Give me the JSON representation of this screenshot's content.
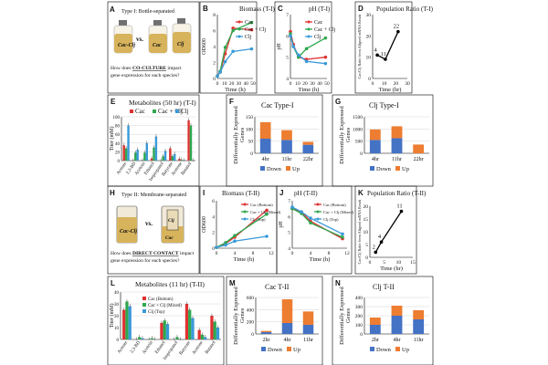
{
  "colors": {
    "cac": "#e03131",
    "mix": "#2fa84f",
    "clj": "#3a9ad9",
    "down": "#4472c4",
    "up": "#ed7d31",
    "black": "#000000"
  },
  "panelA": {
    "letter": "A",
    "title": "Type I: Bottle-separated",
    "bottle1": "Cac-Clj",
    "vs": "vs.",
    "bottle2": "Cac",
    "bottle3": "Clj",
    "q1": "How does ",
    "q_emph": "CO-CULTURE",
    "q2": " impact",
    "q3": "gene expression for each species?"
  },
  "panelH": {
    "letter": "H",
    "title": "Type II: Membrane-separated",
    "tube1": "Cac-Clj",
    "vs": "vs.",
    "tube2": "Cac",
    "tube3": "Clj",
    "q1": "How does ",
    "q_emph": "DIRECT CONTACT",
    "q2": " impact",
    "q3": "gene expression for each species?"
  },
  "chart_data": [
    {
      "id": "B",
      "type": "line",
      "title": "Biomass (T-I)",
      "xlabel": "Time (h)",
      "ylabel": "OD600",
      "xlim": [
        0,
        50
      ],
      "ylim": [
        0,
        8
      ],
      "xticks": [
        0,
        10,
        20,
        30,
        40,
        50
      ],
      "yticks": [
        0,
        2,
        4,
        6,
        8
      ],
      "series": [
        {
          "name": "Cac",
          "x": [
            0,
            4,
            11,
            22,
            48
          ],
          "y": [
            0.3,
            0.8,
            3.1,
            6.3,
            6.1
          ]
        },
        {
          "name": "Cac + Clj",
          "x": [
            0,
            4,
            11,
            22,
            48
          ],
          "y": [
            0.3,
            0.9,
            3.9,
            6.0,
            7.0
          ]
        },
        {
          "name": "Clj",
          "x": [
            0,
            4,
            11,
            22,
            48
          ],
          "y": [
            0.3,
            0.8,
            2.1,
            3.4,
            3.7
          ]
        }
      ]
    },
    {
      "id": "C",
      "type": "line",
      "title": "pH (T-I)",
      "xlabel": "Time (h)",
      "ylabel": "pH",
      "xlim": [
        0,
        50
      ],
      "ylim": [
        4,
        7
      ],
      "xticks": [
        0,
        10,
        20,
        30,
        40,
        50
      ],
      "yticks": [
        4,
        5,
        6,
        7
      ],
      "series": [
        {
          "name": "Cac",
          "x": [
            0,
            4,
            11,
            22,
            48
          ],
          "y": [
            6.2,
            5.6,
            5.0,
            4.9,
            5.0
          ]
        },
        {
          "name": "Cac + Clj",
          "x": [
            0,
            4,
            11,
            22,
            48
          ],
          "y": [
            6.1,
            5.5,
            5.0,
            5.4,
            5.9
          ]
        },
        {
          "name": "Clj",
          "x": [
            0,
            4,
            11,
            22,
            48
          ],
          "y": [
            6.0,
            5.5,
            5.1,
            4.8,
            4.7
          ]
        }
      ]
    },
    {
      "id": "D",
      "type": "line",
      "title": "Population Ratio (T-I)",
      "xlabel": "Time (hr)",
      "ylabel": "Cac/Clj Ratio from Aligned mRNA Reads",
      "xlim": [
        0,
        30
      ],
      "ylim": [
        0,
        30
      ],
      "xticks": [
        0,
        10,
        20,
        30
      ],
      "yticks": [
        0,
        10,
        20,
        30
      ],
      "series": [
        {
          "name": "Ratio",
          "x": [
            4,
            11,
            22
          ],
          "y": [
            11,
            9,
            22
          ],
          "labels": [
            "4",
            "11",
            "22"
          ]
        }
      ]
    },
    {
      "id": "E",
      "type": "bar",
      "title": "Metabolites (50 hr) (T-I)",
      "ylabel": "Titer (mM)",
      "categories": [
        "Acetate",
        "2,3-BD",
        "Acetoin",
        "Ethanol",
        "Isopropanol",
        "Butyrate",
        "Acetone",
        "Butanol"
      ],
      "ylim": [
        0,
        100
      ],
      "yticks": [
        0,
        20,
        40,
        60,
        80,
        100
      ],
      "series": [
        {
          "name": "Cac",
          "values": [
            35,
            0,
            0,
            5,
            0,
            28,
            4,
            92
          ]
        },
        {
          "name": "Cac + Clj",
          "values": [
            28,
            18,
            18,
            30,
            10,
            10,
            2,
            80
          ]
        },
        {
          "name": "Clj",
          "values": [
            80,
            25,
            40,
            55,
            22,
            15,
            0,
            0
          ]
        }
      ]
    },
    {
      "id": "F",
      "type": "bar",
      "title": "Cac Type-I",
      "ylabel": "Differentially Expressed Genes",
      "categories": [
        "4hr",
        "11hr",
        "22hr"
      ],
      "ylim": [
        0,
        150
      ],
      "yticks": [
        0,
        50,
        100,
        150
      ],
      "stacked": true,
      "series": [
        {
          "name": "Down",
          "values": [
            60,
            55,
            35
          ]
        },
        {
          "name": "Up",
          "values": [
            68,
            40,
            12
          ]
        }
      ]
    },
    {
      "id": "G",
      "type": "bar",
      "title": "Clj Type-I",
      "ylabel": "Differentially Expressed Genes",
      "categories": [
        "4hr",
        "11hr",
        "22hr"
      ],
      "ylim": [
        0,
        1500
      ],
      "yticks": [
        0,
        500,
        1000,
        1500
      ],
      "stacked": true,
      "series": [
        {
          "name": "Down",
          "values": [
            550,
            620,
            0
          ]
        },
        {
          "name": "Up",
          "values": [
            430,
            490,
            360
          ]
        }
      ]
    },
    {
      "id": "I",
      "type": "line",
      "title": "Biomass (T-II)",
      "xlabel": "Time (h)",
      "ylabel": "OD600",
      "xlim": [
        0,
        12
      ],
      "ylim": [
        0,
        6
      ],
      "xticks": [
        0,
        4,
        8,
        12
      ],
      "yticks": [
        0,
        2,
        4,
        6
      ],
      "series": [
        {
          "name": "Cac (Bottom)",
          "x": [
            0,
            2,
            4,
            11
          ],
          "y": [
            0.1,
            0.6,
            1.4,
            4.8
          ]
        },
        {
          "name": "Cac + Clj (Mixed)",
          "x": [
            0,
            2,
            4,
            11
          ],
          "y": [
            0.1,
            0.7,
            1.6,
            4.3
          ]
        },
        {
          "name": "Clj (Top)",
          "x": [
            0,
            2,
            4,
            11
          ],
          "y": [
            0.1,
            0.4,
            0.9,
            1.5
          ]
        }
      ]
    },
    {
      "id": "J",
      "type": "line",
      "title": "pH (T-II)",
      "xlabel": "Time (h)",
      "ylabel": "pH",
      "xlim": [
        0,
        12
      ],
      "ylim": [
        4,
        7
      ],
      "xticks": [
        0,
        4,
        8,
        12
      ],
      "yticks": [
        4,
        5,
        6,
        7
      ],
      "series": [
        {
          "name": "Cac (Bottom)",
          "x": [
            0,
            2,
            4,
            11
          ],
          "y": [
            6.5,
            6.3,
            5.7,
            4.6
          ]
        },
        {
          "name": "Cac + Clj (Mixed)",
          "x": [
            0,
            2,
            4,
            11
          ],
          "y": [
            6.5,
            6.2,
            5.6,
            4.7
          ]
        },
        {
          "name": "Clj (Top)",
          "x": [
            0,
            2,
            4,
            11
          ],
          "y": [
            6.6,
            6.3,
            5.9,
            4.9
          ]
        }
      ]
    },
    {
      "id": "K",
      "type": "line",
      "title": "Population Ratio (T-II)",
      "xlabel": "Time (hr)",
      "ylabel": "Cac/Clj Ratio from Aligned mRNA Reads",
      "xlim": [
        0,
        15
      ],
      "ylim": [
        0,
        20
      ],
      "xticks": [
        0,
        5,
        10,
        15
      ],
      "yticks": [
        0,
        5,
        10,
        15,
        20
      ],
      "series": [
        {
          "name": "Ratio",
          "x": [
            2,
            4,
            11
          ],
          "y": [
            2,
            6,
            18
          ],
          "labels": [
            "2",
            "4",
            "11"
          ]
        }
      ]
    },
    {
      "id": "L",
      "type": "bar",
      "title": "Metabolites (11 hr) (T-II)",
      "ylabel": "Titer (mM)",
      "categories": [
        "Acetate",
        "2,3-BD",
        "Acetoin",
        "Ethanol",
        "Isopropanol",
        "Butyrate",
        "Acetone",
        "Butanol"
      ],
      "ylim": [
        0,
        40
      ],
      "yticks": [
        0,
        10,
        20,
        30,
        40
      ],
      "series": [
        {
          "name": "Cac (Bottom)",
          "values": [
            25,
            0,
            0,
            14,
            0,
            30,
            8,
            20
          ]
        },
        {
          "name": "Cac + Clj (Mixed)",
          "values": [
            32,
            2,
            1,
            16,
            2,
            25,
            4,
            15
          ]
        },
        {
          "name": "Clj (Top)",
          "values": [
            28,
            1,
            0,
            13,
            0,
            18,
            2,
            10
          ]
        }
      ]
    },
    {
      "id": "M",
      "type": "bar",
      "title": "Cac T-II",
      "ylabel": "Differentially Expressed Genes",
      "categories": [
        "2hr",
        "4hr",
        "11hr"
      ],
      "ylim": [
        0,
        600
      ],
      "yticks": [
        0,
        200,
        400,
        600
      ],
      "stacked": true,
      "series": [
        {
          "name": "Down",
          "values": [
            30,
            180,
            150
          ]
        },
        {
          "name": "Up",
          "values": [
            20,
            390,
            220
          ]
        }
      ]
    },
    {
      "id": "N",
      "type": "bar",
      "title": "Clj T-II",
      "ylabel": "Differentially Expressed Genes",
      "categories": [
        "2hr",
        "4hr",
        "11hr"
      ],
      "ylim": [
        0,
        400
      ],
      "yticks": [
        0,
        100,
        200,
        300,
        400
      ],
      "stacked": true,
      "series": [
        {
          "name": "Down",
          "values": [
            100,
            200,
            160
          ]
        },
        {
          "name": "Up",
          "values": [
            80,
            110,
            100
          ]
        }
      ]
    }
  ]
}
